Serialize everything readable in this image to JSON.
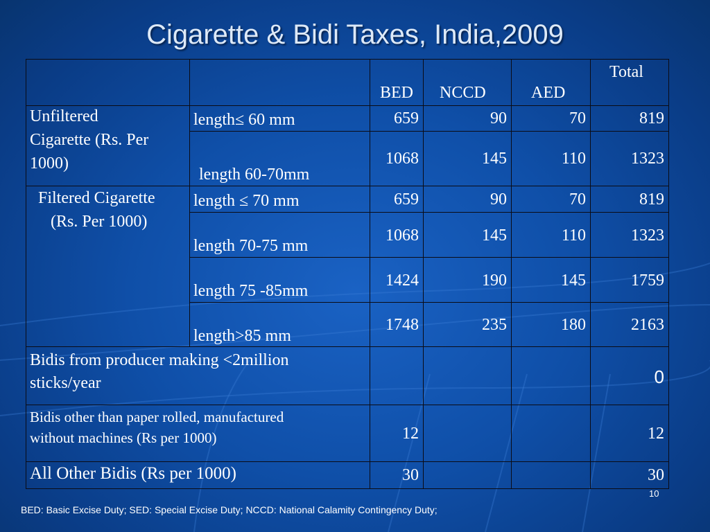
{
  "slide": {
    "title": "Cigarette & Bidi Taxes, India,2009",
    "page_number": "10",
    "footnote": "BED: Basic Excise Duty; SED: Special Excise Duty; NCCD: National Calamity Contingency Duty;"
  },
  "table": {
    "headers": {
      "bed": "BED",
      "nccd": "NCCD",
      "aed": "AED",
      "total": "Total"
    },
    "groups": {
      "unfiltered": [
        "Unfiltered",
        "Cigarette (Rs. Per",
        "1000)"
      ],
      "filtered": [
        "Filtered Cigarette",
        "(Rs. Per 1000)"
      ]
    },
    "rows": [
      {
        "label": "length≤ 60 mm",
        "bed": "659",
        "nccd": "90",
        "aed": "70",
        "total": "819"
      },
      {
        "label": "length 60-70mm",
        "bed": "1068",
        "nccd": "145",
        "aed": "110",
        "total": "1323"
      },
      {
        "label": "length ≤ 70 mm",
        "bed": "659",
        "nccd": "90",
        "aed": "70",
        "total": "819"
      },
      {
        "label": "length 70-75 mm",
        "bed": "1068",
        "nccd": "145",
        "aed": "110",
        "total": "1323"
      },
      {
        "label": "length 75 -85mm",
        "bed": "1424",
        "nccd": "190",
        "aed": "145",
        "total": "1759"
      },
      {
        "label": "length>85 mm",
        "bed": "1748",
        "nccd": "235",
        "aed": "180",
        "total": "2163"
      }
    ],
    "bidis": [
      {
        "label_lines": [
          "Bidis from producer making <2million",
          "sticks/year"
        ],
        "bed": "",
        "total": "0"
      },
      {
        "label_lines": [
          "Bidis other than paper rolled, manufactured",
          "without machines (Rs per 1000)"
        ],
        "bed": "12",
        "total": "12"
      },
      {
        "label_lines": [
          "All Other Bidis (Rs per 1000)"
        ],
        "bed": "30",
        "total": "30"
      }
    ]
  }
}
